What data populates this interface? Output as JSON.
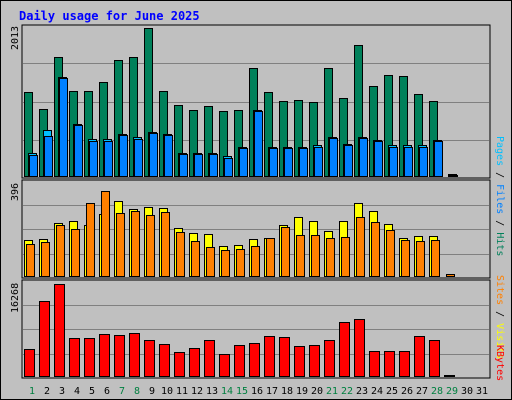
{
  "chart_data": {
    "type": "bar",
    "title": "Daily usage for June 2025",
    "days": [
      "1",
      "2",
      "3",
      "4",
      "5",
      "6",
      "7",
      "8",
      "9",
      "10",
      "11",
      "12",
      "13",
      "14",
      "15",
      "16",
      "17",
      "18",
      "19",
      "20",
      "21",
      "22",
      "23",
      "24",
      "25",
      "26",
      "27",
      "28",
      "29",
      "30",
      "31"
    ],
    "weekend_days": [
      1,
      7,
      8,
      14,
      15,
      21,
      22,
      28,
      29
    ],
    "pages_files_hits": {
      "ymax_label": "2013",
      "ymax": 2013,
      "labels": {
        "pages": "Pages",
        "files": "Files",
        "hits": "Hits",
        "sep": " / "
      },
      "series": [
        {
          "name": "Hits",
          "color": "#00805a",
          "values": [
            1144,
            910,
            1625,
            1162,
            1158,
            1277,
            1583,
            1625,
            2013,
            1162,
            971,
            896,
            957,
            879,
            903,
            1464,
            1146,
            1015,
            1032,
            1006,
            1470,
            1066,
            1786,
            1228,
            1372,
            1358,
            1122,
            1021,
            0,
            0,
            0
          ]
        },
        {
          "name": "Files",
          "color": "#00bfff",
          "values": [
            315,
            629,
            1343,
            706,
            500,
            500,
            577,
            533,
            600,
            577,
            315,
            315,
            315,
            268,
            392,
            898,
            392,
            392,
            392,
            415,
            533,
            438,
            533,
            488,
            415,
            415,
            415,
            488,
            30,
            0,
            0
          ]
        },
        {
          "name": "Pages",
          "color": "#0080ff",
          "values": [
            290,
            550,
            1330,
            690,
            480,
            480,
            560,
            510,
            590,
            560,
            300,
            300,
            300,
            250,
            380,
            880,
            380,
            380,
            380,
            400,
            520,
            420,
            520,
            470,
            400,
            400,
            400,
            470,
            20,
            0,
            0
          ]
        }
      ]
    },
    "sites_visits": {
      "ymax_label": "396",
      "ymax": 396,
      "labels": {
        "sites": "Sites",
        "visits": "Visits",
        "sep": " / "
      },
      "series": [
        {
          "name": "Visits",
          "color": "#ffff00",
          "values": [
            157,
            160,
            227,
            238,
            221,
            268,
            324,
            287,
            299,
            294,
            206,
            186,
            182,
            129,
            135,
            161,
            165,
            220,
            253,
            236,
            193,
            238,
            315,
            278,
            225,
            163,
            173,
            173,
            0,
            0,
            0
          ]
        },
        {
          "name": "Sites",
          "color": "#ff8000",
          "values": [
            136,
            145,
            221,
            203,
            314,
            365,
            270,
            280,
            262,
            277,
            190,
            151,
            124,
            113,
            118,
            129,
            163,
            213,
            178,
            178,
            163,
            168,
            256,
            233,
            196,
            156,
            151,
            157,
            10,
            0,
            0
          ]
        }
      ]
    },
    "kbytes": {
      "ymax_label": "16268",
      "ymax": 16268,
      "labels": {
        "kbytes": "KBytes"
      },
      "series": [
        {
          "name": "KBytes",
          "color": "#ff0000",
          "values": [
            4700,
            13200,
            16268,
            6700,
            6800,
            7500,
            7200,
            7600,
            6400,
            5700,
            4300,
            5000,
            6300,
            3900,
            5500,
            5900,
            7100,
            6900,
            5300,
            5400,
            6400,
            9600,
            10100,
            4500,
            4500,
            4500,
            7000,
            6400,
            200,
            0,
            0
          ]
        }
      ]
    }
  }
}
